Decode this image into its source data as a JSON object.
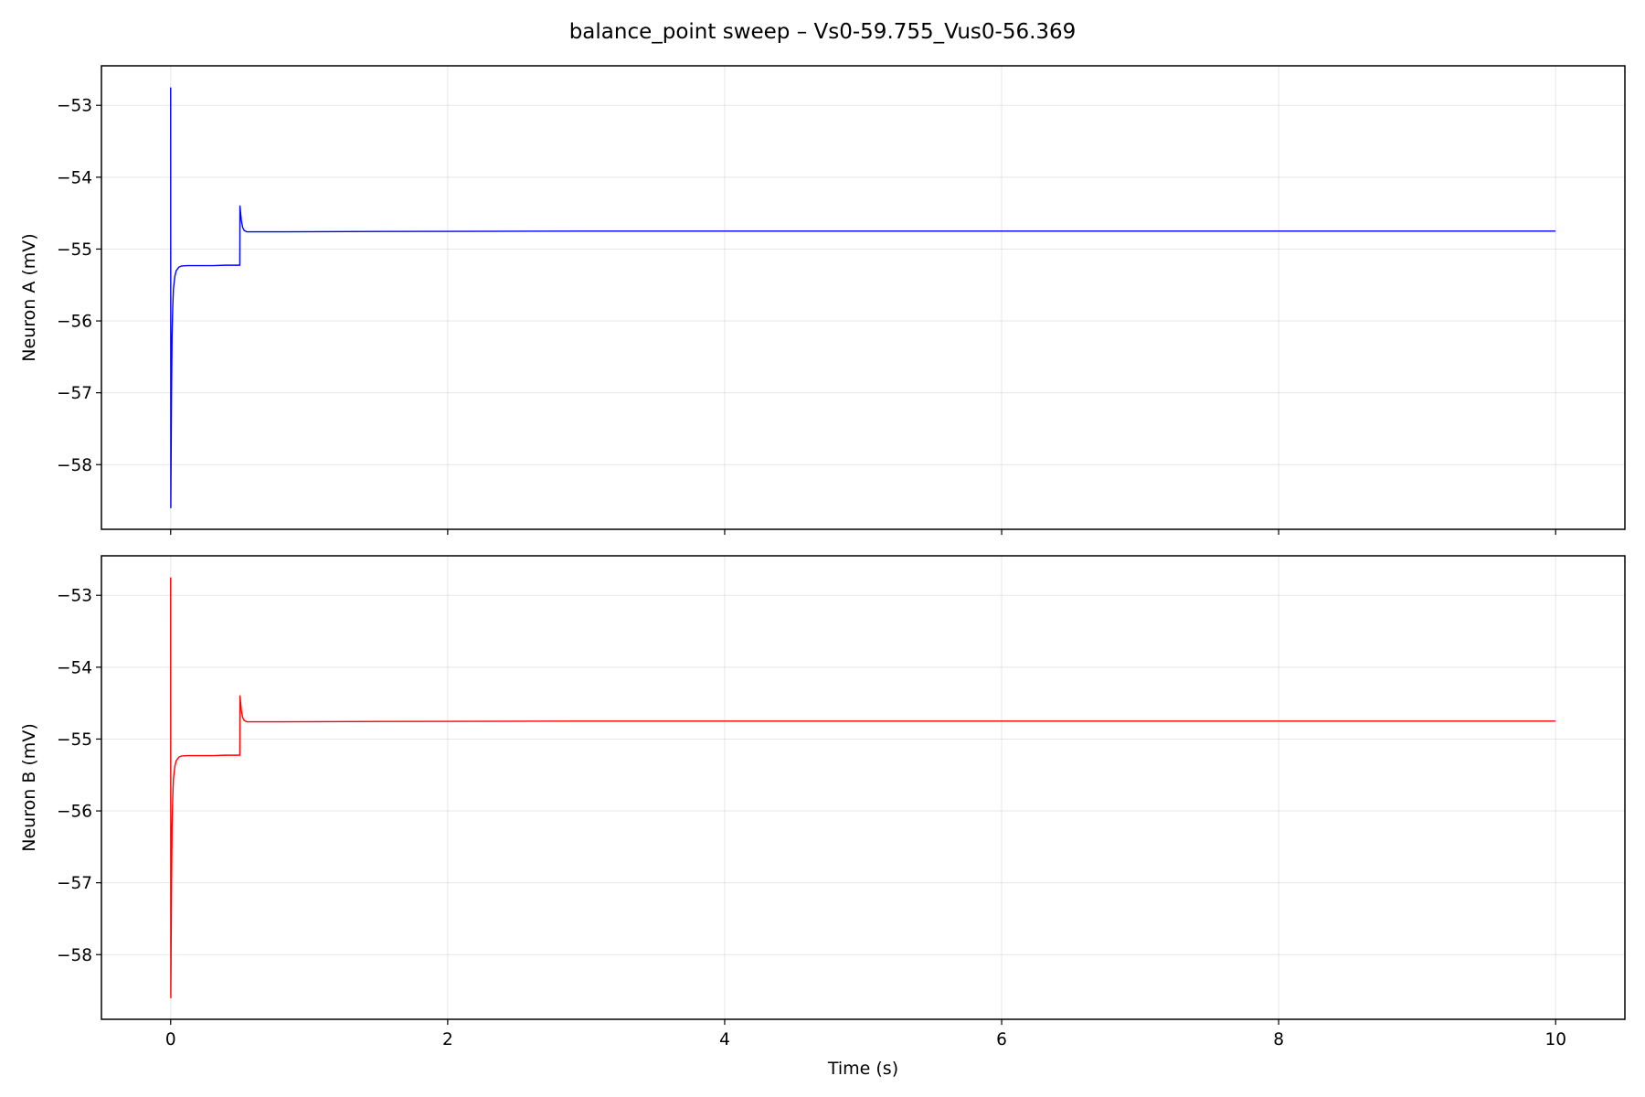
{
  "chart_data": {
    "title": "balance_point sweep – Vs0-59.755_Vus0-56.369",
    "type": "line",
    "shared_x": true,
    "xlabel": "Time (s)",
    "xlim": [
      -0.5,
      10.5
    ],
    "xticks": [
      0,
      2,
      4,
      6,
      8,
      10
    ],
    "grid": true,
    "subplots": [
      {
        "ylabel": "Neuron A (mV)",
        "ylim": [
          -58.9,
          -52.45
        ],
        "yticks": [
          -53,
          -54,
          -55,
          -56,
          -57,
          -58
        ],
        "color": "#0000ff",
        "x": [
          0,
          0.001,
          0.003,
          0.006,
          0.01,
          0.015,
          0.02,
          0.03,
          0.04,
          0.06,
          0.08,
          0.12,
          0.2,
          0.3,
          0.4,
          0.499,
          0.5,
          0.51,
          0.52,
          0.53,
          0.55,
          0.6,
          0.8,
          1.5,
          3,
          6,
          10
        ],
        "y": [
          -52.75,
          -58.6,
          -57.9,
          -57.0,
          -56.2,
          -55.8,
          -55.55,
          -55.38,
          -55.3,
          -55.25,
          -55.235,
          -55.23,
          -55.23,
          -55.23,
          -55.225,
          -55.225,
          -54.4,
          -54.6,
          -54.7,
          -54.74,
          -54.76,
          -54.76,
          -54.76,
          -54.755,
          -54.75,
          -54.75,
          -54.75
        ]
      },
      {
        "ylabel": "Neuron B (mV)",
        "ylim": [
          -58.9,
          -52.45
        ],
        "yticks": [
          -53,
          -54,
          -55,
          -56,
          -57,
          -58
        ],
        "color": "#ff0000",
        "x": [
          0,
          0.001,
          0.003,
          0.006,
          0.01,
          0.015,
          0.02,
          0.03,
          0.04,
          0.06,
          0.08,
          0.12,
          0.2,
          0.3,
          0.4,
          0.499,
          0.5,
          0.51,
          0.52,
          0.53,
          0.55,
          0.6,
          0.8,
          1.5,
          3,
          6,
          10
        ],
        "y": [
          -52.75,
          -58.6,
          -57.9,
          -57.0,
          -56.2,
          -55.8,
          -55.55,
          -55.38,
          -55.3,
          -55.25,
          -55.235,
          -55.23,
          -55.23,
          -55.23,
          -55.225,
          -55.225,
          -54.4,
          -54.6,
          -54.7,
          -54.74,
          -54.76,
          -54.76,
          -54.76,
          -54.755,
          -54.75,
          -54.75,
          -54.75
        ]
      }
    ]
  }
}
